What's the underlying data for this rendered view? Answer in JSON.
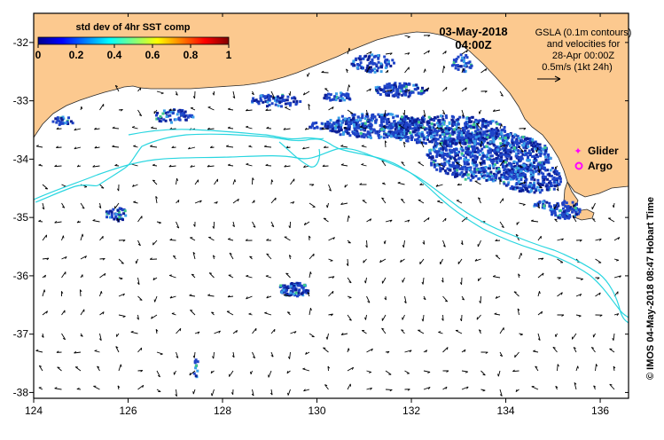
{
  "map": {
    "date_line": "03-May-2018",
    "time_line": "04:00Z",
    "colorbar": {
      "title": "std dev of 4hr SST comp",
      "ticks": [
        "0",
        "0.2",
        "0.4",
        "0.6",
        "0.8",
        "1"
      ],
      "colormap": "jet"
    },
    "info_lines": [
      "GSLA (0.1m contours)",
      "and velocities for",
      "28-Apr 00:00Z",
      "0.5m/s (1kt 24h)"
    ],
    "legend": {
      "glider": "Glider",
      "argo": "Argo",
      "glider_color": "#ff00ff",
      "argo_color": "#ff00ff"
    },
    "credit": "© IMOS 04-May-2018 08:47 Hobart Time",
    "x_axis": {
      "range": [
        124,
        136.6
      ],
      "ticks": [
        124,
        126,
        128,
        130,
        132,
        134,
        136
      ],
      "tick_labels": [
        "124",
        "126",
        "128",
        "130",
        "132",
        "134",
        "136"
      ]
    },
    "y_axis": {
      "range": [
        -38.1,
        -31.5
      ],
      "ticks": [
        -32,
        -33,
        -34,
        -35,
        -36,
        -37,
        -38
      ],
      "tick_labels": [
        "-32",
        "-33",
        "-34",
        "-35",
        "-36",
        "-37",
        "-38"
      ]
    },
    "colors": {
      "land": "#fcc98f",
      "ocean": "#ffffff",
      "contour": "#29d6e0",
      "sst_main": "#1f44c8",
      "sst_dark": "#0c1f96",
      "sst_light": "#3aa0e8",
      "sst_green": "#3ec88a",
      "arrows": "#000000"
    }
  }
}
